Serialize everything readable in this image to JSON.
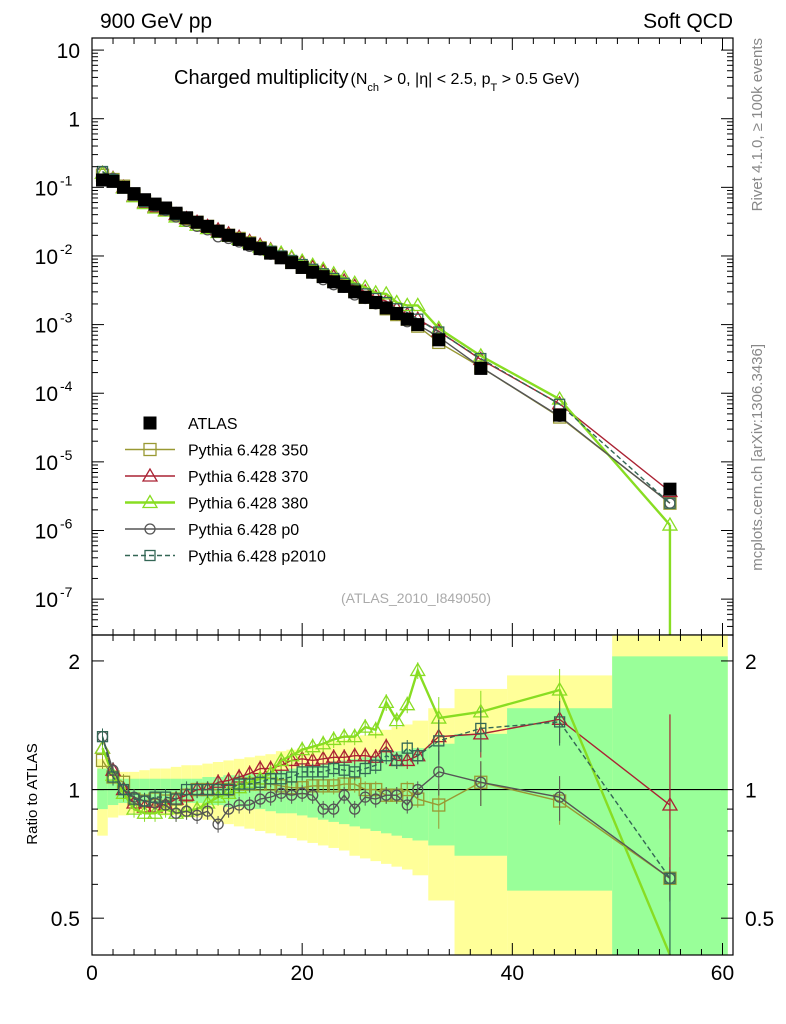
{
  "header": {
    "left": "900 GeV pp",
    "right": "Soft QCD"
  },
  "side_labels": {
    "rivet": "Rivet 4.1.0, ≥ 100k events",
    "url": "mcplots.cern.ch [arXiv:1306.3436]"
  },
  "chart_data": [
    {
      "type": "line",
      "panel": "main",
      "title": "Charged multiplicity",
      "title_cuts": {
        "n_sym": "N",
        "n_sub": "ch",
        "n_cut": " > 0, |η| < 2.5, p",
        "pt_sub": "T",
        "pt_cut": " > 0.5 GeV)"
      },
      "analysis_id": "(ATLAS_2010_I849050)",
      "xlim": [
        0,
        61
      ],
      "ylim": [
        3e-08,
        15
      ],
      "yscale": "log",
      "ytick_mantissa": "10",
      "ytick_exponents": [
        "-7",
        "-6",
        "-5",
        "-4",
        "-3",
        "-2",
        "-1"
      ],
      "ytick_plain": [
        "1",
        "10"
      ],
      "x": [
        1,
        2,
        3,
        4,
        5,
        6,
        7,
        8,
        9,
        10,
        11,
        12,
        13,
        14,
        15,
        16,
        17,
        18,
        19,
        20,
        21,
        22,
        23,
        24,
        25,
        26,
        27,
        28,
        29,
        30,
        31,
        33,
        37,
        44.5,
        55
      ],
      "series": [
        {
          "name": "ATLAS",
          "color": "#000000",
          "marker": "square-filled",
          "values": [
            0.128,
            0.122,
            0.1,
            0.081,
            0.066,
            0.057,
            0.05,
            0.042,
            0.036,
            0.031,
            0.027,
            0.023,
            0.02,
            0.0174,
            0.015,
            0.0128,
            0.011,
            0.0094,
            0.008,
            0.0068,
            0.0058,
            0.005,
            0.0042,
            0.0036,
            0.003,
            0.0025,
            0.0021,
            0.00175,
            0.00145,
            0.0012,
            0.001,
            0.0006,
            0.00023,
            4.8e-05,
            4e-06
          ]
        },
        {
          "name": "Pythia 6.428 350",
          "color": "#999933",
          "marker": "square-open",
          "values": [
            0.15,
            0.13,
            0.104,
            0.077,
            0.062,
            0.054,
            0.047,
            0.04,
            0.035,
            0.031,
            0.027,
            0.023,
            0.02,
            0.018,
            0.0155,
            0.0132,
            0.0113,
            0.0096,
            0.0081,
            0.0069,
            0.0059,
            0.0051,
            0.0043,
            0.0037,
            0.0031,
            0.0025,
            0.0021,
            0.0017,
            0.0014,
            0.0012,
            0.00095,
            0.00055,
            0.00024,
            4.5e-05,
            2.5e-06
          ]
        },
        {
          "name": "Pythia 6.428 370",
          "color": "#aa2233",
          "marker": "triangle-open",
          "values": [
            0.16,
            0.135,
            0.1,
            0.075,
            0.06,
            0.052,
            0.046,
            0.04,
            0.035,
            0.031,
            0.027,
            0.024,
            0.021,
            0.0187,
            0.0163,
            0.0143,
            0.0123,
            0.0107,
            0.0094,
            0.008,
            0.0068,
            0.0059,
            0.005,
            0.0043,
            0.0036,
            0.003,
            0.0025,
            0.0022,
            0.0017,
            0.0014,
            0.0012,
            0.0008,
            0.00031,
            7e-05,
            3.7e-06
          ]
        },
        {
          "name": "Pythia 6.428 380",
          "color": "#88dd22",
          "marker": "triangle-open",
          "values": [
            0.16,
            0.132,
            0.098,
            0.073,
            0.058,
            0.05,
            0.045,
            0.037,
            0.032,
            0.028,
            0.025,
            0.022,
            0.0195,
            0.0175,
            0.0155,
            0.0135,
            0.012,
            0.011,
            0.0096,
            0.0084,
            0.0073,
            0.0064,
            0.0055,
            0.0048,
            0.004,
            0.0035,
            0.0029,
            0.0028,
            0.0021,
            0.0019,
            0.0019,
            0.00088,
            0.00035,
            8.2e-05,
            1.2e-06
          ]
        },
        {
          "name": "Pythia 6.428 p0",
          "color": "#555555",
          "marker": "circle-open",
          "values": [
            0.17,
            0.135,
            0.1,
            0.078,
            0.062,
            0.053,
            0.046,
            0.037,
            0.032,
            0.027,
            0.024,
            0.019,
            0.018,
            0.016,
            0.0138,
            0.0122,
            0.0106,
            0.0092,
            0.0078,
            0.0067,
            0.0056,
            0.0045,
            0.0038,
            0.0035,
            0.0027,
            0.0024,
            0.002,
            0.0017,
            0.0014,
            0.0011,
            0.001,
            0.00066,
            0.00024,
            4.6e-05,
            2.5e-06
          ]
        },
        {
          "name": "Pythia 6.428 p2010",
          "color": "#336655",
          "marker": "square-open-dashed",
          "values": [
            0.17,
            0.13,
            0.1,
            0.077,
            0.062,
            0.055,
            0.048,
            0.04,
            0.036,
            0.031,
            0.027,
            0.023,
            0.02,
            0.018,
            0.0155,
            0.0133,
            0.0117,
            0.01,
            0.0086,
            0.0075,
            0.0064,
            0.0055,
            0.0047,
            0.004,
            0.0033,
            0.0028,
            0.0024,
            0.0021,
            0.0017,
            0.0015,
            0.0012,
            0.00078,
            0.00032,
            6.9e-05,
            2.5e-06
          ]
        }
      ]
    },
    {
      "type": "line",
      "panel": "ratio",
      "ylabel": "Ratio to ATLAS",
      "xlim": [
        0,
        61
      ],
      "ylim": [
        0.41,
        2.3
      ],
      "yscale": "log",
      "yticks": [
        "0.5",
        "1",
        "2"
      ],
      "xticks": [
        "0",
        "20",
        "40",
        "60"
      ],
      "x": [
        1,
        2,
        3,
        4,
        5,
        6,
        7,
        8,
        9,
        10,
        11,
        12,
        13,
        14,
        15,
        16,
        17,
        18,
        19,
        20,
        21,
        22,
        23,
        24,
        25,
        26,
        27,
        28,
        29,
        30,
        31,
        33,
        37,
        44.5,
        55
      ],
      "band_edges": [
        0.5,
        1.5,
        2.5,
        3.5,
        4.5,
        5.5,
        6.5,
        7.5,
        8.5,
        9.5,
        10.5,
        11.5,
        12.5,
        13.5,
        14.5,
        15.5,
        16.5,
        17.5,
        18.5,
        19.5,
        20.5,
        21.5,
        22.5,
        23.5,
        24.5,
        25.5,
        26.5,
        27.5,
        28.5,
        29.5,
        30.5,
        32,
        34.5,
        39.5,
        49.5,
        60.5
      ],
      "band_stat": [
        [
          0.9,
          1.12
        ],
        [
          0.92,
          1.06
        ],
        [
          0.93,
          1.06
        ],
        [
          0.93,
          1.06
        ],
        [
          0.93,
          1.06
        ],
        [
          0.93,
          1.06
        ],
        [
          0.93,
          1.06
        ],
        [
          0.93,
          1.06
        ],
        [
          0.93,
          1.06
        ],
        [
          0.93,
          1.06
        ],
        [
          0.92,
          1.07
        ],
        [
          0.92,
          1.07
        ],
        [
          0.91,
          1.08
        ],
        [
          0.91,
          1.08
        ],
        [
          0.9,
          1.09
        ],
        [
          0.9,
          1.09
        ],
        [
          0.89,
          1.1
        ],
        [
          0.88,
          1.11
        ],
        [
          0.88,
          1.12
        ],
        [
          0.87,
          1.13
        ],
        [
          0.86,
          1.14
        ],
        [
          0.85,
          1.15
        ],
        [
          0.84,
          1.16
        ],
        [
          0.83,
          1.17
        ],
        [
          0.82,
          1.18
        ],
        [
          0.81,
          1.19
        ],
        [
          0.8,
          1.2
        ],
        [
          0.79,
          1.22
        ],
        [
          0.78,
          1.23
        ],
        [
          0.77,
          1.24
        ],
        [
          0.76,
          1.25
        ],
        [
          0.74,
          1.28
        ],
        [
          0.7,
          1.35
        ],
        [
          0.58,
          1.55
        ],
        [
          0.35,
          2.05
        ]
      ],
      "band_total": [
        [
          0.78,
          1.18
        ],
        [
          0.86,
          1.1
        ],
        [
          0.87,
          1.1
        ],
        [
          0.88,
          1.1
        ],
        [
          0.88,
          1.11
        ],
        [
          0.88,
          1.12
        ],
        [
          0.87,
          1.12
        ],
        [
          0.87,
          1.13
        ],
        [
          0.86,
          1.14
        ],
        [
          0.86,
          1.14
        ],
        [
          0.85,
          1.15
        ],
        [
          0.84,
          1.16
        ],
        [
          0.83,
          1.17
        ],
        [
          0.82,
          1.18
        ],
        [
          0.81,
          1.19
        ],
        [
          0.8,
          1.2
        ],
        [
          0.79,
          1.21
        ],
        [
          0.78,
          1.23
        ],
        [
          0.77,
          1.24
        ],
        [
          0.76,
          1.25
        ],
        [
          0.75,
          1.26
        ],
        [
          0.74,
          1.28
        ],
        [
          0.73,
          1.3
        ],
        [
          0.72,
          1.31
        ],
        [
          0.7,
          1.33
        ],
        [
          0.69,
          1.34
        ],
        [
          0.68,
          1.36
        ],
        [
          0.67,
          1.38
        ],
        [
          0.66,
          1.4
        ],
        [
          0.65,
          1.42
        ],
        [
          0.63,
          1.45
        ],
        [
          0.55,
          1.55
        ],
        [
          0.41,
          1.72
        ],
        [
          0.41,
          1.85
        ],
        [
          0.41,
          2.3
        ]
      ],
      "series": [
        {
          "name": "Pythia 6.428 350",
          "color": "#999933",
          "marker": "square-open",
          "values": [
            1.17,
            1.07,
            1.04,
            0.95,
            0.94,
            0.95,
            0.94,
            0.95,
            0.97,
            1.0,
            1.0,
            1.0,
            1.0,
            1.03,
            1.03,
            1.03,
            1.03,
            1.02,
            1.01,
            1.01,
            1.02,
            1.02,
            1.02,
            1.03,
            1.03,
            1.0,
            1.0,
            0.97,
            0.97,
            1.0,
            0.95,
            0.92,
            1.04,
            0.94,
            0.62
          ]
        },
        {
          "name": "Pythia 6.428 370",
          "color": "#aa2233",
          "marker": "triangle-open",
          "values": [
            1.25,
            1.11,
            1.0,
            0.93,
            0.91,
            0.91,
            0.92,
            0.95,
            0.97,
            1.0,
            1.0,
            1.04,
            1.05,
            1.07,
            1.09,
            1.12,
            1.12,
            1.14,
            1.17,
            1.18,
            1.17,
            1.18,
            1.19,
            1.19,
            1.2,
            1.2,
            1.19,
            1.26,
            1.17,
            1.17,
            1.2,
            1.33,
            1.35,
            1.46,
            0.92
          ]
        },
        {
          "name": "Pythia 6.428 380",
          "color": "#88dd22",
          "marker": "triangle-open",
          "values": [
            1.25,
            1.08,
            0.98,
            0.9,
            0.88,
            0.88,
            0.9,
            0.88,
            0.89,
            0.9,
            0.93,
            0.96,
            0.98,
            1.01,
            1.04,
            1.06,
            1.09,
            1.17,
            1.2,
            1.24,
            1.26,
            1.28,
            1.31,
            1.33,
            1.33,
            1.4,
            1.38,
            1.6,
            1.45,
            1.58,
            1.9,
            1.47,
            1.52,
            1.71,
            0.3
          ]
        },
        {
          "name": "Pythia 6.428 p0",
          "color": "#555555",
          "marker": "circle-open",
          "values": [
            1.33,
            1.11,
            1.0,
            0.96,
            0.94,
            0.93,
            0.92,
            0.88,
            0.89,
            0.87,
            0.89,
            0.83,
            0.9,
            0.92,
            0.92,
            0.95,
            0.96,
            0.98,
            0.97,
            0.98,
            0.97,
            0.9,
            0.9,
            0.97,
            0.9,
            0.96,
            0.95,
            0.97,
            0.97,
            0.92,
            1.0,
            1.1,
            1.04,
            0.96,
            0.62
          ]
        },
        {
          "name": "Pythia 6.428 p2010",
          "color": "#336655",
          "marker": "square-open-dashed",
          "values": [
            1.33,
            1.07,
            1.0,
            0.95,
            0.94,
            0.96,
            0.96,
            0.95,
            1.0,
            1.0,
            1.0,
            1.0,
            1.0,
            1.03,
            1.03,
            1.04,
            1.06,
            1.06,
            1.07,
            1.1,
            1.1,
            1.1,
            1.12,
            1.11,
            1.1,
            1.12,
            1.14,
            1.2,
            1.17,
            1.25,
            1.2,
            1.3,
            1.39,
            1.44,
            0.62
          ]
        }
      ]
    }
  ]
}
